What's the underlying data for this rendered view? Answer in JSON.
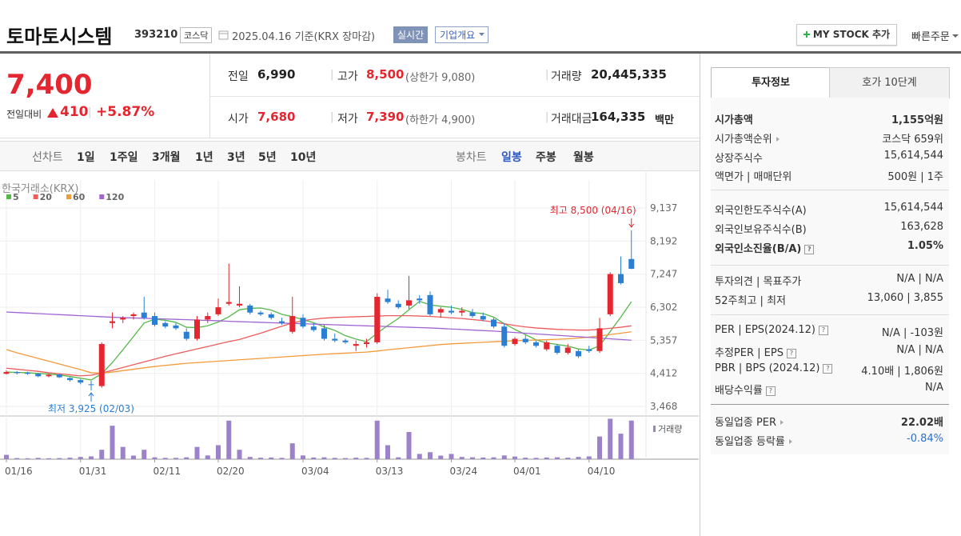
{
  "header": {
    "name": "토마토시스템",
    "code": "393210",
    "market": "코스닥",
    "date": "2025.04.16 기준(KRX 장마감)",
    "realtime": "실시간",
    "overview": "기업개요",
    "my_stock": "MY STOCK 추가",
    "quick_order": "빠른주문"
  },
  "price": {
    "current": "7,400",
    "change_label": "전일대비",
    "change": "410",
    "change_rate": "+5.87%"
  },
  "summary": [
    [
      {
        "label": "전일",
        "value": "6,990"
      },
      {
        "label": "고가",
        "value": "8,500",
        "note": "(상한가 9,080)"
      },
      {
        "label": "거래량",
        "value": "20,445,335"
      }
    ],
    [
      {
        "label": "시가",
        "value": "7,680"
      },
      {
        "label": "저가",
        "value": "7,390",
        "note": "(하한가 4,900)"
      },
      {
        "label": "거래대금",
        "value": "164,335",
        "unit": "백만"
      }
    ]
  ],
  "chart_tabs": {
    "line_label": "선차트",
    "line_periods": [
      "1일",
      "1주일",
      "3개월",
      "1년",
      "3년",
      "5년",
      "10년"
    ],
    "candle_label": "봉차트",
    "candle_periods": [
      "일봉",
      "주봉",
      "월봉"
    ]
  },
  "chart_data": {
    "type": "candlestick",
    "source": "한국거래소(KRX)",
    "categories": [
      "01/16",
      null,
      null,
      null,
      null,
      null,
      null,
      "01/31",
      null,
      null,
      null,
      null,
      null,
      null,
      "02/11",
      null,
      null,
      null,
      null,
      null,
      "02/20",
      null,
      null,
      null,
      null,
      null,
      null,
      null,
      "03/04",
      null,
      null,
      null,
      null,
      null,
      null,
      "03/13",
      null,
      null,
      null,
      null,
      null,
      null,
      "03/24",
      null,
      null,
      null,
      null,
      null,
      "04/01",
      null,
      null,
      null,
      null,
      null,
      null,
      "04/10",
      null,
      null,
      null,
      null
    ],
    "open": [
      4400,
      4450,
      4430,
      4400,
      4330,
      4380,
      4280,
      4220,
      4100,
      4050,
      5850,
      5950,
      6050,
      6150,
      6050,
      5850,
      5780,
      5600,
      5400,
      5950,
      6100,
      6400,
      6350,
      6350,
      6150,
      6100,
      5900,
      5600,
      6000,
      5750,
      5700,
      5400,
      5350,
      5200,
      5250,
      5300,
      6550,
      6400,
      6350,
      6550,
      6650,
      6150,
      6200,
      6150,
      6150,
      6050,
      5950,
      5750,
      5250,
      5400,
      5300,
      5100,
      5200,
      5000,
      5050,
      5100,
      5050,
      6100,
      7250,
      7680
    ],
    "high": [
      4500,
      4480,
      4460,
      4420,
      4400,
      4400,
      4300,
      4250,
      4200,
      5300,
      6150,
      6050,
      6150,
      6600,
      6150,
      5900,
      5850,
      5700,
      6050,
      6150,
      6550,
      7550,
      6900,
      6400,
      6200,
      6150,
      6000,
      6600,
      6100,
      5850,
      5800,
      5550,
      5400,
      5350,
      5400,
      6700,
      6800,
      6500,
      7200,
      6650,
      6750,
      6300,
      6350,
      6300,
      6250,
      6150,
      6000,
      5850,
      5450,
      5500,
      5350,
      5350,
      5250,
      5250,
      5100,
      5200,
      6000,
      7300,
      7750,
      8500
    ],
    "low": [
      4380,
      4380,
      4370,
      4300,
      4300,
      4280,
      4180,
      4100,
      3925,
      4000,
      5700,
      5850,
      5950,
      5950,
      5750,
      5700,
      5650,
      5350,
      5350,
      5850,
      6050,
      6350,
      6300,
      6100,
      6050,
      5950,
      5800,
      5550,
      5700,
      5600,
      5350,
      5300,
      5250,
      5050,
      5150,
      5250,
      6400,
      6250,
      6250,
      6400,
      6050,
      6000,
      6100,
      6050,
      6000,
      5900,
      5700,
      5150,
      5200,
      5250,
      5150,
      5050,
      4950,
      4950,
      4850,
      5000,
      5000,
      6050,
      6950,
      7390
    ],
    "close": [
      4450,
      4420,
      4400,
      4330,
      4370,
      4300,
      4220,
      4150,
      4080,
      5250,
      5900,
      6000,
      6100,
      6000,
      5800,
      5750,
      5700,
      5400,
      5950,
      6050,
      6300,
      6450,
      6400,
      6150,
      6100,
      6000,
      5850,
      6050,
      5750,
      5650,
      5400,
      5350,
      5300,
      5250,
      5300,
      6600,
      6450,
      6300,
      6500,
      6500,
      6100,
      6250,
      6150,
      6200,
      6050,
      5950,
      5750,
      5200,
      5400,
      5300,
      5200,
      5300,
      5000,
      5150,
      4900,
      5050,
      5700,
      7250,
      6990,
      7400
    ],
    "up_color": "#e3262f",
    "down_color": "#2a7fd4",
    "ylim": [
      3194,
      9937
    ],
    "yticks": [
      {
        "value": 9137,
        "label": "9,137"
      },
      {
        "value": 8192,
        "label": "8,192"
      },
      {
        "value": 7247,
        "label": "7,247"
      },
      {
        "value": 6302,
        "label": "6,302"
      },
      {
        "value": 5357,
        "label": "5,357"
      },
      {
        "value": 4412,
        "label": "4,412"
      },
      {
        "value": 3468,
        "label": "3,468"
      }
    ],
    "series": [
      {
        "name": "5",
        "color": "#55b84a",
        "values": [
          4450,
          4440,
          4430,
          4410,
          4394,
          4364,
          4324,
          4274,
          4224,
          4400,
          4720,
          5086,
          5466,
          5850,
          5960,
          5930,
          5870,
          5730,
          5720,
          5770,
          5880,
          6030,
          6230,
          6270,
          6280,
          6220,
          6100,
          6030,
          5950,
          5860,
          5740,
          5640,
          5490,
          5390,
          5320,
          5560,
          5780,
          5980,
          6230,
          6470,
          6370,
          6330,
          6300,
          6240,
          6150,
          6120,
          6020,
          5830,
          5670,
          5520,
          5370,
          5280,
          5240,
          5190,
          5110,
          5080,
          5200,
          5610,
          6020,
          6460
        ]
      },
      {
        "name": "20",
        "color": "#ef5b5b",
        "values": [
          4560,
          4530,
          4500,
          4470,
          4430,
          4400,
          4370,
          4340,
          4360,
          4420,
          4500,
          4580,
          4660,
          4740,
          4820,
          4900,
          4970,
          5040,
          5110,
          5180,
          5250,
          5320,
          5380,
          5470,
          5560,
          5660,
          5760,
          5850,
          5920,
          5960,
          5990,
          6010,
          6020,
          6030,
          6040,
          6050,
          6060,
          6060,
          6060,
          6050,
          6040,
          6020,
          6000,
          5980,
          5950,
          5920,
          5880,
          5830,
          5780,
          5740,
          5710,
          5690,
          5670,
          5660,
          5650,
          5650,
          5670,
          5700,
          5730,
          5770
        ]
      },
      {
        "name": "60",
        "color": "#f49a3a",
        "values": [
          5090,
          5000,
          4920,
          4840,
          4760,
          4680,
          4600,
          4520,
          4430,
          4420,
          4450,
          4490,
          4530,
          4570,
          4610,
          4640,
          4670,
          4700,
          4720,
          4740,
          4760,
          4780,
          4800,
          4820,
          4840,
          4860,
          4880,
          4900,
          4920,
          4940,
          4960,
          4975,
          4990,
          5005,
          5020,
          5050,
          5085,
          5115,
          5145,
          5175,
          5205,
          5235,
          5255,
          5270,
          5285,
          5300,
          5315,
          5330,
          5345,
          5355,
          5365,
          5375,
          5385,
          5400,
          5420,
          5450,
          5480,
          5520,
          5560,
          5600
        ]
      },
      {
        "name": "120",
        "color": "#a064d4",
        "values": [
          6165,
          6150,
          6135,
          6120,
          6105,
          6090,
          6075,
          6060,
          6045,
          6030,
          6015,
          6005,
          5995,
          5985,
          5975,
          5965,
          5955,
          5945,
          5935,
          5925,
          5915,
          5900,
          5890,
          5880,
          5870,
          5860,
          5850,
          5840,
          5830,
          5820,
          5810,
          5800,
          5790,
          5780,
          5770,
          5760,
          5750,
          5740,
          5730,
          5720,
          5710,
          5695,
          5680,
          5665,
          5650,
          5635,
          5620,
          5600,
          5580,
          5560,
          5540,
          5520,
          5500,
          5480,
          5460,
          5440,
          5420,
          5400,
          5380,
          5360
        ]
      }
    ],
    "volume_label": "거래량",
    "volume_color": "#9b82c9",
    "volume_lim": [
      0,
      22000000
    ],
    "volume": [
      2300000,
      600000,
      500000,
      700000,
      500000,
      600000,
      800000,
      1200000,
      1500000,
      5000000,
      17700000,
      6500000,
      1900000,
      5000000,
      1000000,
      700000,
      700000,
      1000000,
      6500000,
      2000000,
      7400000,
      20400000,
      5000000,
      1200000,
      800000,
      900000,
      700000,
      8400000,
      2000000,
      900000,
      1000000,
      700000,
      600000,
      800000,
      700000,
      20400000,
      7400000,
      1000000,
      14400000,
      2800000,
      3700000,
      1900000,
      2800000,
      1200000,
      1000000,
      900000,
      1000000,
      2000000,
      1400000,
      800000,
      700000,
      900000,
      1000000,
      800000,
      1200000,
      1500000,
      12000000,
      21400000,
      13500000,
      20445335
    ],
    "high_label": "최고 8,500 (04/16)",
    "low_label": "최저 3,925 (02/03)"
  },
  "invest_info": {
    "tabs": [
      "투자정보",
      "호가 10단계"
    ],
    "groups": [
      [
        {
          "label": "시가총액",
          "value": "1,155억원"
        },
        {
          "label": "시가총액순위",
          "value": "코스닥 659위"
        },
        {
          "label": "상장주식수",
          "value": "15,614,544"
        },
        {
          "label": "액면가 | 매매단위",
          "value": "500원 | 1주"
        }
      ],
      [
        {
          "label": "외국인한도주식수(A)",
          "value": "15,614,544"
        },
        {
          "label": "외국인보유주식수(B)",
          "value": "163,628"
        },
        {
          "label": "외국인소진율(B/A)",
          "value": "1.05%"
        }
      ],
      [
        {
          "label": "투자의견 | 목표주가",
          "value": "N/A | N/A"
        },
        {
          "label": "52주최고 | 최저",
          "value": "13,060 | 3,855"
        }
      ],
      [
        {
          "label": "PER | EPS(2024.12)",
          "value": "N/A | -103원"
        },
        {
          "label": "추정PER | EPS",
          "value": "N/A | N/A"
        },
        {
          "label": "PBR | BPS (2024.12)",
          "value": "4.10배 | 1,806원"
        },
        {
          "label": "배당수익률",
          "value": "N/A"
        }
      ],
      [
        {
          "label": "동일업종 PER",
          "value": "22.02배"
        },
        {
          "label": "동일업종 등락률",
          "value": "-0.84%"
        }
      ]
    ]
  }
}
